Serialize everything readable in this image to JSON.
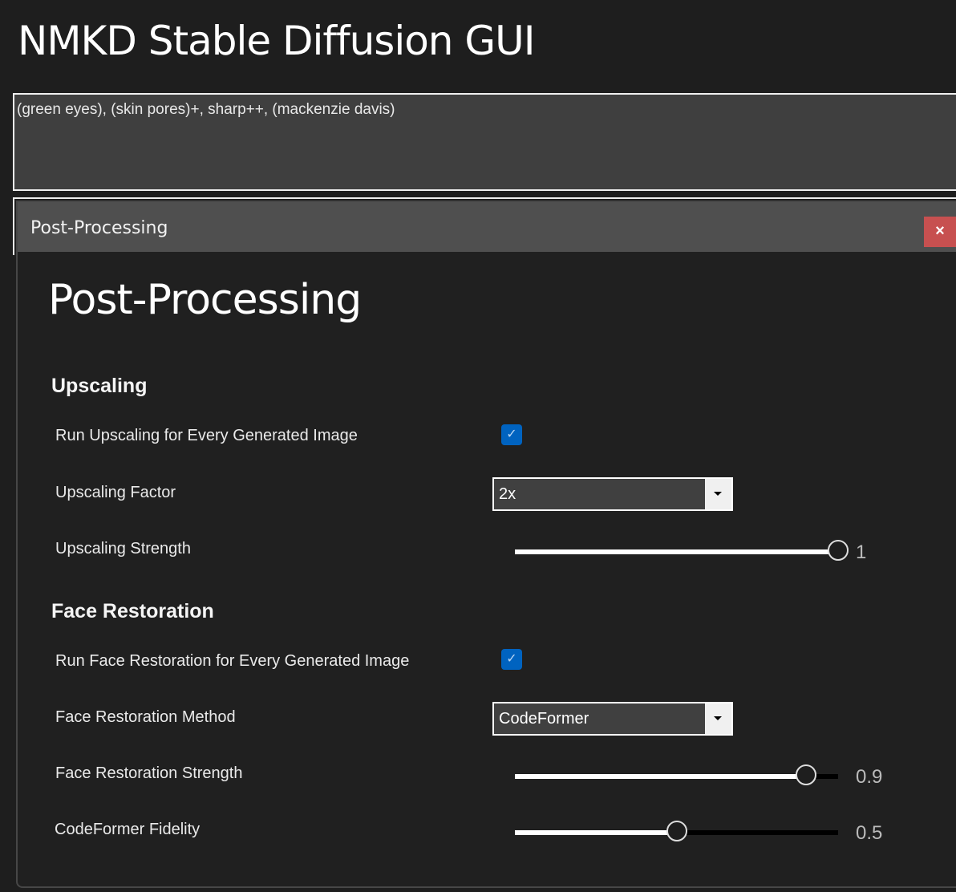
{
  "app": {
    "title": "NMKD Stable Diffusion GUI"
  },
  "prompt": {
    "value": "(green eyes), (skin pores)+, sharp++, (mackenzie davis)"
  },
  "dialog": {
    "window_title": "Post-Processing",
    "close_label": "×",
    "heading": "Post-Processing",
    "upscaling": {
      "section_title": "Upscaling",
      "run_label": "Run Upscaling for Every Generated Image",
      "run_checked": true,
      "factor_label": "Upscaling Factor",
      "factor_value": "2x",
      "strength_label": "Upscaling Strength",
      "strength_value": "1",
      "strength_fraction": 1.0
    },
    "face_restoration": {
      "section_title": "Face Restoration",
      "run_label": "Run Face Restoration for Every Generated Image",
      "run_checked": true,
      "method_label": "Face Restoration Method",
      "method_value": "CodeFormer",
      "strength_label": "Face Restoration Strength",
      "strength_value": "0.9",
      "strength_fraction": 0.9,
      "fidelity_label": "CodeFormer Fidelity",
      "fidelity_value": "0.5",
      "fidelity_fraction": 0.5
    }
  },
  "colors": {
    "checkbox": "#0063c0",
    "close_button": "#c75050",
    "titlebar": "#4f4f4f"
  }
}
